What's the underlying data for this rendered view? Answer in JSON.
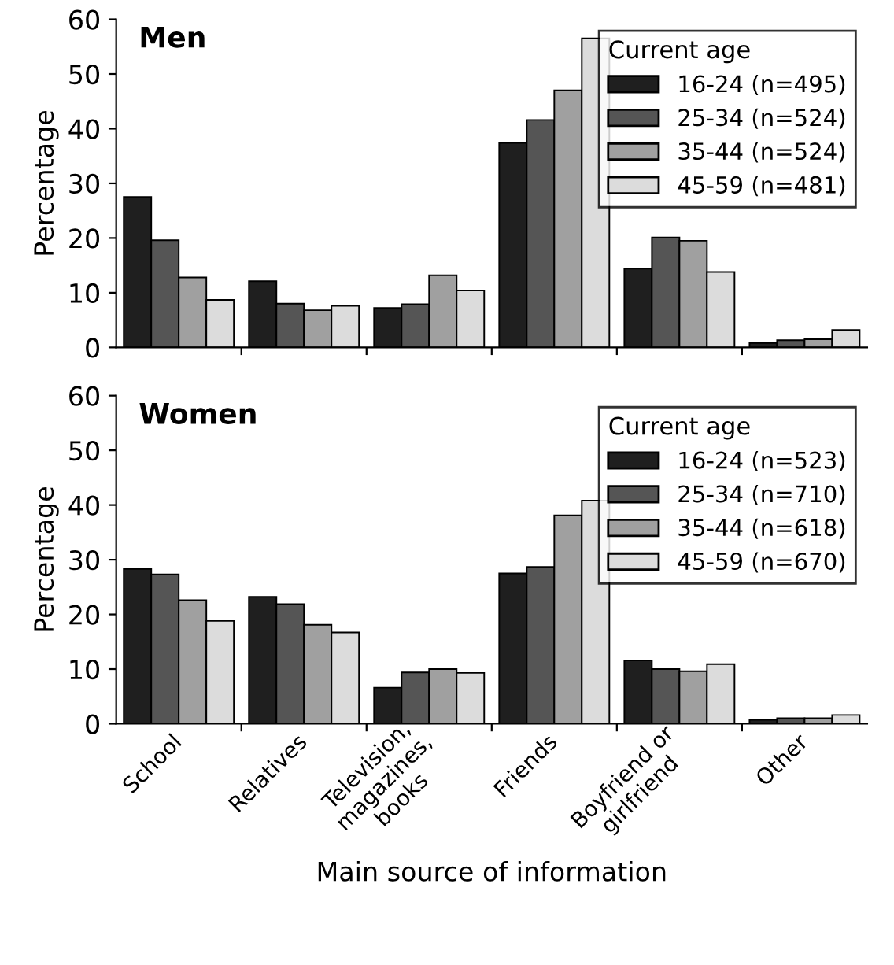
{
  "chart_data": [
    {
      "type": "bar",
      "title": "Men",
      "ylabel": "Percentage",
      "legend_title": "Current age",
      "legend": "top right",
      "tick_labels": "y",
      "grid": false,
      "categories": [
        null,
        null,
        null,
        null,
        null,
        null
      ],
      "ylim": [
        0,
        60
      ],
      "yticks": [
        0,
        10,
        20,
        30,
        40,
        50,
        60
      ],
      "series": [
        {
          "name": "16-24 (n=495)",
          "color": "#1f1f1f",
          "values": [
            27.5,
            12.1,
            7.2,
            37.4,
            14.4,
            0.8
          ]
        },
        {
          "name": "25-34 (n=524)",
          "color": "#555555",
          "values": [
            19.6,
            8.0,
            7.9,
            41.6,
            20.1,
            1.3
          ]
        },
        {
          "name": "35-44 (n=524)",
          "color": "#a0a0a0",
          "values": [
            12.8,
            6.8,
            13.2,
            47.0,
            19.5,
            1.5
          ]
        },
        {
          "name": "45-59 (n=481)",
          "color": "#dcdcdc",
          "values": [
            8.7,
            7.6,
            10.4,
            56.5,
            13.8,
            3.2
          ]
        }
      ]
    },
    {
      "type": "bar",
      "title": "Women",
      "ylabel": "Percentage",
      "xlabel": "Main source of information",
      "legend_title": "Current age",
      "legend": "top right",
      "grid": false,
      "categories": [
        "School",
        "Relatives",
        "Television,\nmagazines,\nbooks",
        "Friends",
        "Boyfriend or\ngirlfriend",
        "Other"
      ],
      "ylim": [
        0,
        60
      ],
      "yticks": [
        0,
        10,
        20,
        30,
        40,
        50,
        60
      ],
      "series": [
        {
          "name": "16-24 (n=523)",
          "color": "#1f1f1f",
          "values": [
            28.3,
            23.2,
            6.6,
            27.5,
            11.6,
            0.7
          ]
        },
        {
          "name": "25-34 (n=710)",
          "color": "#555555",
          "values": [
            27.3,
            21.9,
            9.4,
            28.7,
            10.0,
            1.0
          ]
        },
        {
          "name": "35-44 (n=618)",
          "color": "#a0a0a0",
          "values": [
            22.6,
            18.1,
            10.0,
            38.1,
            9.6,
            1.0
          ]
        },
        {
          "name": "45-59 (n=670)",
          "color": "#dcdcdc",
          "values": [
            18.8,
            16.7,
            9.3,
            40.8,
            10.9,
            1.6
          ]
        }
      ]
    }
  ]
}
